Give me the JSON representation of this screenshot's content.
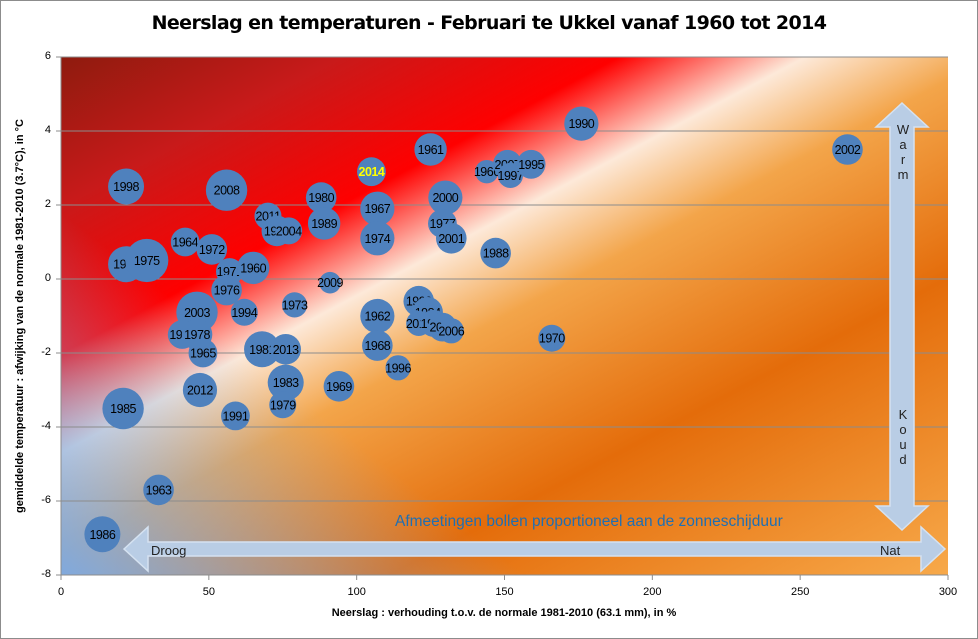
{
  "chart_data": {
    "type": "scatter",
    "subtype": "bubble",
    "title": "Neerslag en temperaturen - Februari te Ukkel vanaf 1960 tot 2014",
    "xlabel": "Neerslag : verhouding t.o.v.  de normale 1981-2010 (63.1 mm), in %",
    "ylabel": "gemiddelde temperatuur : afwijking  van de normale 1981-2010 (3.7°C), in °C",
    "xlim": [
      0,
      300
    ],
    "ylim": [
      -8,
      6
    ],
    "xticks": [
      0,
      50,
      100,
      150,
      200,
      250,
      300
    ],
    "yticks": [
      -8,
      -6,
      -4,
      -2,
      0,
      2,
      4,
      6
    ],
    "grid": "horizontal",
    "annotations": {
      "bubble_note": "Afmeetingen bollen proportioneel aan de zonneschijduur",
      "dry_label": "Droog",
      "wet_label": "Nat",
      "warm_label": "Warm",
      "cold_label": "Koud"
    },
    "highlight_color": "#ffff00",
    "bubble_color": "#4f81bd",
    "points": [
      {
        "year": "1998",
        "x": 22,
        "y": 2.5,
        "size": 1.0
      },
      {
        "year": "2008",
        "x": 56,
        "y": 2.4,
        "size": 1.15
      },
      {
        "year": "1961",
        "x": 125,
        "y": 3.5,
        "size": 0.9
      },
      {
        "year": "1990",
        "x": 176,
        "y": 4.2,
        "size": 0.95
      },
      {
        "year": "2002",
        "x": 266,
        "y": 3.5,
        "size": 0.85
      },
      {
        "year": "2014",
        "x": 105,
        "y": 2.9,
        "size": 0.8,
        "highlight": true
      },
      {
        "year": "1966",
        "x": 144,
        "y": 2.9,
        "size": 0.65
      },
      {
        "year": "2007",
        "x": 151,
        "y": 3.1,
        "size": 0.8
      },
      {
        "year": "1997",
        "x": 152,
        "y": 2.8,
        "size": 0.7
      },
      {
        "year": "1995",
        "x": 159,
        "y": 3.1,
        "size": 0.8
      },
      {
        "year": "1980",
        "x": 88,
        "y": 2.2,
        "size": 0.85
      },
      {
        "year": "2000",
        "x": 130,
        "y": 2.2,
        "size": 0.95
      },
      {
        "year": "2011",
        "x": 70,
        "y": 1.7,
        "size": 0.75
      },
      {
        "year": "1992",
        "x": 73,
        "y": 1.3,
        "size": 0.85
      },
      {
        "year": "2004",
        "x": 77,
        "y": 1.3,
        "size": 0.75
      },
      {
        "year": "1989",
        "x": 89,
        "y": 1.5,
        "size": 0.9
      },
      {
        "year": "1967",
        "x": 107,
        "y": 1.9,
        "size": 0.95
      },
      {
        "year": "1977",
        "x": 129,
        "y": 1.5,
        "size": 0.8
      },
      {
        "year": "2001",
        "x": 132,
        "y": 1.1,
        "size": 0.85
      },
      {
        "year": "1974",
        "x": 107,
        "y": 1.1,
        "size": 0.95
      },
      {
        "year": "1988",
        "x": 147,
        "y": 0.7,
        "size": 0.85
      },
      {
        "year": "1964",
        "x": 42,
        "y": 1.0,
        "size": 0.8
      },
      {
        "year": "1972",
        "x": 51,
        "y": 0.8,
        "size": 0.85
      },
      {
        "year": "1982",
        "x": 22,
        "y": 0.4,
        "size": 1.0
      },
      {
        "year": "1975",
        "x": 29,
        "y": 0.5,
        "size": 1.2
      },
      {
        "year": "1971",
        "x": 57,
        "y": 0.2,
        "size": 0.75
      },
      {
        "year": "1960",
        "x": 65,
        "y": 0.3,
        "size": 0.9
      },
      {
        "year": "2009",
        "x": 91,
        "y": -0.1,
        "size": 0.6
      },
      {
        "year": "1976",
        "x": 56,
        "y": -0.3,
        "size": 0.85
      },
      {
        "year": "1973",
        "x": 79,
        "y": -0.7,
        "size": 0.7
      },
      {
        "year": "2003",
        "x": 46,
        "y": -0.9,
        "size": 1.15
      },
      {
        "year": "1994",
        "x": 62,
        "y": -0.9,
        "size": 0.75
      },
      {
        "year": "1962",
        "x": 107,
        "y": -1.0,
        "size": 0.95
      },
      {
        "year": "1999",
        "x": 121,
        "y": -0.6,
        "size": 0.85
      },
      {
        "year": "1984",
        "x": 124,
        "y": -0.9,
        "size": 0.85
      },
      {
        "year": "2010",
        "x": 121,
        "y": -1.2,
        "size": 0.7
      },
      {
        "year": "1987",
        "x": 126,
        "y": -1.2,
        "size": 0.75
      },
      {
        "year": "2005",
        "x": 129,
        "y": -1.3,
        "size": 0.8
      },
      {
        "year": "2006",
        "x": 132,
        "y": -1.4,
        "size": 0.7
      },
      {
        "year": "1970",
        "x": 166,
        "y": -1.6,
        "size": 0.75
      },
      {
        "year": "1957",
        "x": 41,
        "y": -1.5,
        "size": 0.8
      },
      {
        "year": "1978",
        "x": 46,
        "y": -1.5,
        "size": 0.85
      },
      {
        "year": "1965",
        "x": 48,
        "y": -2.0,
        "size": 0.8
      },
      {
        "year": "1981",
        "x": 68,
        "y": -1.9,
        "size": 1.0
      },
      {
        "year": "2013",
        "x": 76,
        "y": -1.9,
        "size": 0.85
      },
      {
        "year": "1968",
        "x": 107,
        "y": -1.8,
        "size": 0.85
      },
      {
        "year": "1996",
        "x": 114,
        "y": -2.4,
        "size": 0.7
      },
      {
        "year": "2012",
        "x": 47,
        "y": -3.0,
        "size": 0.95
      },
      {
        "year": "1983",
        "x": 76,
        "y": -2.8,
        "size": 1.0
      },
      {
        "year": "1969",
        "x": 94,
        "y": -2.9,
        "size": 0.85
      },
      {
        "year": "1979",
        "x": 75,
        "y": -3.4,
        "size": 0.75
      },
      {
        "year": "1985",
        "x": 21,
        "y": -3.5,
        "size": 1.15
      },
      {
        "year": "1991",
        "x": 59,
        "y": -3.7,
        "size": 0.8
      },
      {
        "year": "1963",
        "x": 33,
        "y": -5.7,
        "size": 0.85
      },
      {
        "year": "1986",
        "x": 14,
        "y": -6.9,
        "size": 1.0
      }
    ]
  }
}
